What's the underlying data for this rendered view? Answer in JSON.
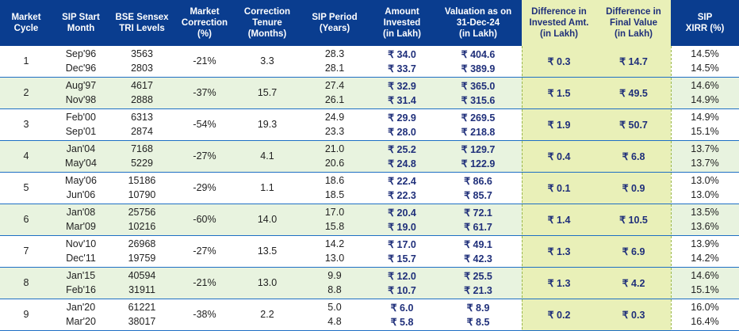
{
  "table": {
    "headers": [
      "Market\nCycle",
      "SIP Start\nMonth",
      "BSE Sensex\nTRI Levels",
      "Market\nCorrection\n(%)",
      "Correction\nTenure\n(Months)",
      "SIP Period\n(Years)",
      "Amount\nInvested\n(in Lakh)",
      "Valuation as on\n31-Dec-24\n(in Lakh)",
      "Difference in\nInvested Amt.\n(in Lakh)",
      "Difference in\nFinal Value\n(in Lakh)",
      "SIP\nXIRR (%)"
    ],
    "rows": [
      {
        "cycle": "1",
        "m1": "Sep'96",
        "m2": "Dec'96",
        "t1": "3563",
        "t2": "2803",
        "corr": "-21%",
        "tenure": "3.3",
        "p1": "28.3",
        "p2": "28.1",
        "a1": "₹ 34.0",
        "a2": "₹ 33.7",
        "v1": "₹ 404.6",
        "v2": "₹ 389.9",
        "di": "₹ 0.3",
        "dv": "₹ 14.7",
        "x1": "14.5%",
        "x2": "14.5%"
      },
      {
        "cycle": "2",
        "m1": "Aug'97",
        "m2": "Nov'98",
        "t1": "4617",
        "t2": "2888",
        "corr": "-37%",
        "tenure": "15.7",
        "p1": "27.4",
        "p2": "26.1",
        "a1": "₹ 32.9",
        "a2": "₹ 31.4",
        "v1": "₹ 365.0",
        "v2": "₹ 315.6",
        "di": "₹ 1.5",
        "dv": "₹ 49.5",
        "x1": "14.6%",
        "x2": "14.9%"
      },
      {
        "cycle": "3",
        "m1": "Feb'00",
        "m2": "Sep'01",
        "t1": "6313",
        "t2": "2874",
        "corr": "-54%",
        "tenure": "19.3",
        "p1": "24.9",
        "p2": "23.3",
        "a1": "₹ 29.9",
        "a2": "₹ 28.0",
        "v1": "₹ 269.5",
        "v2": "₹ 218.8",
        "di": "₹ 1.9",
        "dv": "₹ 50.7",
        "x1": "14.9%",
        "x2": "15.1%"
      },
      {
        "cycle": "4",
        "m1": "Jan'04",
        "m2": "May'04",
        "t1": "7168",
        "t2": "5229",
        "corr": "-27%",
        "tenure": "4.1",
        "p1": "21.0",
        "p2": "20.6",
        "a1": "₹ 25.2",
        "a2": "₹ 24.8",
        "v1": "₹ 129.7",
        "v2": "₹ 122.9",
        "di": "₹ 0.4",
        "dv": "₹ 6.8",
        "x1": "13.7%",
        "x2": "13.7%"
      },
      {
        "cycle": "5",
        "m1": "May'06",
        "m2": "Jun'06",
        "t1": "15186",
        "t2": "10790",
        "corr": "-29%",
        "tenure": "1.1",
        "p1": "18.6",
        "p2": "18.5",
        "a1": "₹ 22.4",
        "a2": "₹ 22.3",
        "v1": "₹ 86.6",
        "v2": "₹ 85.7",
        "di": "₹ 0.1",
        "dv": "₹ 0.9",
        "x1": "13.0%",
        "x2": "13.0%"
      },
      {
        "cycle": "6",
        "m1": "Jan'08",
        "m2": "Mar'09",
        "t1": "25756",
        "t2": "10216",
        "corr": "-60%",
        "tenure": "14.0",
        "p1": "17.0",
        "p2": "15.8",
        "a1": "₹ 20.4",
        "a2": "₹ 19.0",
        "v1": "₹ 72.1",
        "v2": "₹ 61.7",
        "di": "₹ 1.4",
        "dv": "₹ 10.5",
        "x1": "13.5%",
        "x2": "13.6%"
      },
      {
        "cycle": "7",
        "m1": "Nov'10",
        "m2": "Dec'11",
        "t1": "26968",
        "t2": "19759",
        "corr": "-27%",
        "tenure": "13.5",
        "p1": "14.2",
        "p2": "13.0",
        "a1": "₹ 17.0",
        "a2": "₹ 15.7",
        "v1": "₹ 49.1",
        "v2": "₹ 42.3",
        "di": "₹ 1.3",
        "dv": "₹ 6.9",
        "x1": "13.9%",
        "x2": "14.2%"
      },
      {
        "cycle": "8",
        "m1": "Jan'15",
        "m2": "Feb'16",
        "t1": "40594",
        "t2": "31911",
        "corr": "-21%",
        "tenure": "13.0",
        "p1": "9.9",
        "p2": "8.8",
        "a1": "₹ 12.0",
        "a2": "₹ 10.7",
        "v1": "₹ 25.5",
        "v2": "₹ 21.3",
        "di": "₹ 1.3",
        "dv": "₹ 4.2",
        "x1": "14.6%",
        "x2": "15.1%"
      },
      {
        "cycle": "9",
        "m1": "Jan'20",
        "m2": "Mar'20",
        "t1": "61221",
        "t2": "38017",
        "corr": "-38%",
        "tenure": "2.2",
        "p1": "5.0",
        "p2": "4.8",
        "a1": "₹ 6.0",
        "a2": "₹ 5.8",
        "v1": "₹ 8.9",
        "v2": "₹ 8.5",
        "di": "₹ 0.2",
        "dv": "₹ 0.3",
        "x1": "16.0%",
        "x2": "16.4%"
      }
    ]
  }
}
